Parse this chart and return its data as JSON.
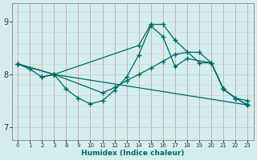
{
  "xlabel": "Humidex (Indice chaleur)",
  "bg_color": "#d4eeee",
  "line_color": "#006666",
  "hgrid_color": "#b8d8d8",
  "vgrid_color": "#c8a8a8",
  "ylim": [
    6.75,
    9.35
  ],
  "yticks": [
    7,
    8,
    9
  ],
  "xticks": [
    0,
    1,
    2,
    3,
    8,
    9,
    10,
    11,
    12,
    13,
    14,
    15,
    16,
    17,
    18,
    19,
    20,
    21,
    22,
    23
  ],
  "lines": [
    {
      "x": [
        0,
        1,
        2,
        3,
        14,
        15,
        16,
        17,
        19,
        20,
        21,
        22,
        23
      ],
      "y": [
        8.2,
        8.1,
        7.95,
        8.0,
        8.55,
        8.95,
        8.95,
        8.65,
        8.22,
        8.22,
        7.72,
        7.55,
        7.5
      ],
      "style": "-",
      "marker": "+"
    },
    {
      "x": [
        0,
        3,
        23
      ],
      "y": [
        8.2,
        8.0,
        7.42
      ],
      "style": "-",
      "marker": "+"
    },
    {
      "x": [
        0,
        3,
        11,
        12,
        13,
        14,
        15,
        16,
        17,
        18,
        19,
        20,
        21,
        22,
        23
      ],
      "y": [
        8.2,
        8.0,
        7.65,
        7.75,
        7.88,
        8.0,
        8.12,
        8.25,
        8.38,
        8.42,
        8.42,
        8.22,
        7.72,
        7.55,
        7.42
      ],
      "style": "-",
      "marker": "+"
    },
    {
      "x": [
        2,
        3,
        8,
        9,
        10,
        11,
        12,
        13,
        14,
        15,
        16,
        17,
        18,
        20,
        21,
        22,
        23
      ],
      "y": [
        7.95,
        8.0,
        7.72,
        7.55,
        7.44,
        7.5,
        7.7,
        7.95,
        8.37,
        8.92,
        8.72,
        8.15,
        8.3,
        8.22,
        7.72,
        7.55,
        7.42
      ],
      "style": "-",
      "marker": "+"
    }
  ]
}
